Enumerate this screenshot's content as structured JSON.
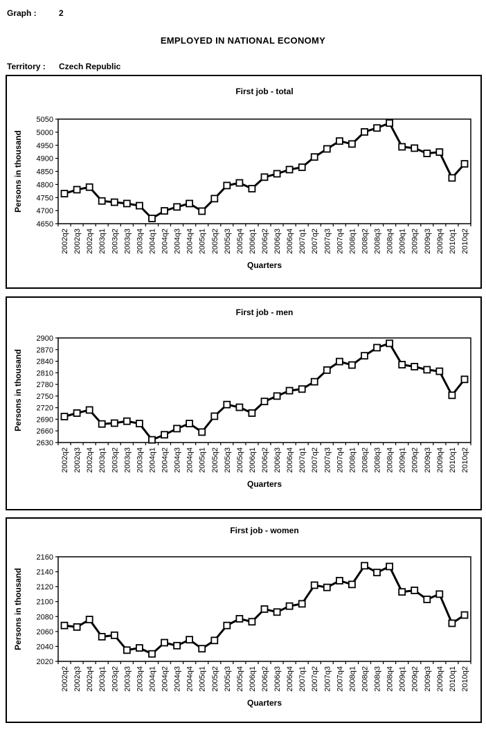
{
  "header": {
    "graph_label": "Graph :",
    "graph_number": "2",
    "title": "EMPLOYED IN NATIONAL ECONOMY",
    "territory_label": "Territory :",
    "territory_value": "Czech Republic"
  },
  "chart_data": [
    {
      "type": "line",
      "title": "First job - total",
      "ylabel": "Persons in thousand",
      "xlabel": "Quarters",
      "ylim": [
        4650,
        5050
      ],
      "ytick_step": 50,
      "grid": false,
      "legend": "none",
      "marker": "white-square",
      "line_color": "#000000",
      "categories": [
        "2002q2",
        "2002q3",
        "2002q4",
        "2003q1",
        "2003q2",
        "2003q3",
        "2003q4",
        "2004q1",
        "2004q2",
        "2004q3",
        "2004q4",
        "2005q1",
        "2005q2",
        "2005q3",
        "2005q4",
        "2006q1",
        "2006q2",
        "2006q3",
        "2006q4",
        "2007q1",
        "2007q2",
        "2007q3",
        "2007q4",
        "2008q1",
        "2008q2",
        "2008q3",
        "2008q4",
        "2009q1",
        "2009q2",
        "2009q3",
        "2009q4",
        "2010q1",
        "2010q2"
      ],
      "values": [
        4765,
        4780,
        4790,
        4737,
        4732,
        4727,
        4719,
        4670,
        4699,
        4714,
        4727,
        4698,
        4746,
        4796,
        4806,
        4784,
        4828,
        4841,
        4857,
        4866,
        4905,
        4936,
        4966,
        4955,
        5001,
        5016,
        5035,
        4944,
        4939,
        4919,
        4924,
        4825,
        4879
      ]
    },
    {
      "type": "line",
      "title": "First job - men",
      "ylabel": "Persons in thousand",
      "xlabel": "Quarters",
      "ylim": [
        2630,
        2900
      ],
      "ytick_step": 30,
      "grid": false,
      "legend": "none",
      "marker": "white-square",
      "line_color": "#000000",
      "categories": [
        "2002q2",
        "2002q3",
        "2002q4",
        "2003q1",
        "2003q2",
        "2003q3",
        "2003q4",
        "2004q1",
        "2004q2",
        "2004q3",
        "2004q4",
        "2005q1",
        "2005q2",
        "2005q3",
        "2005q4",
        "2006q1",
        "2006q2",
        "2006q3",
        "2006q4",
        "2007q1",
        "2007q2",
        "2007q3",
        "2007q4",
        "2008q1",
        "2008q2",
        "2008q3",
        "2008q4",
        "2009q1",
        "2009q2",
        "2009q3",
        "2009q4",
        "2010q1",
        "2010q2"
      ],
      "values": [
        2697,
        2706,
        2714,
        2678,
        2680,
        2685,
        2679,
        2637,
        2650,
        2666,
        2679,
        2657,
        2698,
        2728,
        2721,
        2706,
        2736,
        2750,
        2764,
        2768,
        2787,
        2817,
        2839,
        2830,
        2854,
        2875,
        2886,
        2831,
        2826,
        2818,
        2814,
        2752,
        2793
      ]
    },
    {
      "type": "line",
      "title": "First job - women",
      "ylabel": "Persons in thousand",
      "xlabel": "Quarters",
      "ylim": [
        2020,
        2160
      ],
      "ytick_step": 20,
      "grid": false,
      "legend": "none",
      "marker": "white-square",
      "line_color": "#000000",
      "categories": [
        "2002q2",
        "2002q3",
        "2002q4",
        "2003q1",
        "2003q2",
        "2003q3",
        "2003q4",
        "2004q1",
        "2004q2",
        "2004q3",
        "2004q4",
        "2005q1",
        "2005q2",
        "2005q3",
        "2005q4",
        "2006q1",
        "2006q2",
        "2006q3",
        "2006q4",
        "2007q1",
        "2007q2",
        "2007q3",
        "2007q4",
        "2008q1",
        "2008q2",
        "2008q3",
        "2008q4",
        "2009q1",
        "2009q2",
        "2009q3",
        "2009q4",
        "2010q1",
        "2010q2"
      ],
      "values": [
        2068,
        2066,
        2076,
        2053,
        2055,
        2035,
        2038,
        2030,
        2045,
        2041,
        2049,
        2037,
        2048,
        2068,
        2077,
        2073,
        2090,
        2086,
        2094,
        2097,
        2122,
        2119,
        2128,
        2123,
        2148,
        2139,
        2147,
        2113,
        2115,
        2103,
        2110,
        2071,
        2082
      ]
    }
  ]
}
